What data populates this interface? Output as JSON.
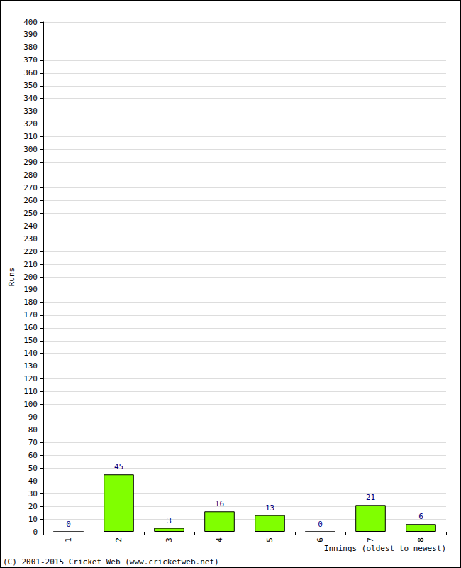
{
  "chart_data": {
    "type": "bar",
    "categories": [
      "1",
      "2",
      "3",
      "4",
      "5",
      "6",
      "7",
      "8"
    ],
    "values": [
      0,
      45,
      3,
      16,
      13,
      0,
      21,
      6
    ],
    "color": "#80ff00",
    "x_label": "Innings (oldest to newest)",
    "y_label": "Runs",
    "annotations": [
      "(C) 2001-2015 Cricket Web (www.cricketweb.net)"
    ],
    "ylim": [
      0,
      400
    ],
    "yticks": [
      0,
      10,
      20,
      30,
      40,
      50,
      60,
      70,
      80,
      90,
      100,
      110,
      120,
      130,
      140,
      150,
      160,
      170,
      180,
      190,
      200,
      210,
      220,
      230,
      240,
      250,
      260,
      270,
      280,
      290,
      300,
      310,
      320,
      330,
      340,
      350,
      360,
      370,
      380,
      390,
      400
    ],
    "grid": true,
    "data_labels": true
  }
}
